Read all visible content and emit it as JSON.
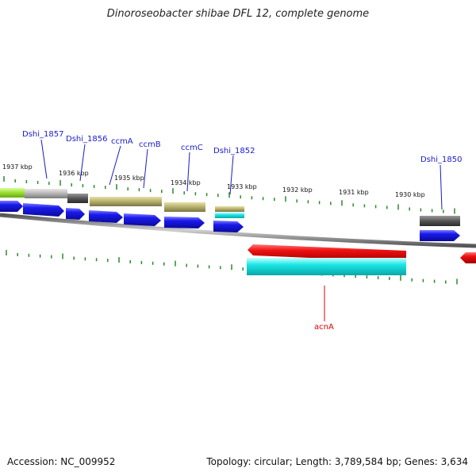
{
  "title": "Dinoroseobacter shibae DFL 12, complete genome",
  "footer": {
    "accession": "Accession: NC_009952",
    "summary": "Topology: circular; Length: 3,789,584 bp; Genes: 3,634"
  },
  "colors": {
    "backbone": "#8c8c8c",
    "tick": "#2a8a2a",
    "gene_label": "#1a1acc",
    "focus_label": "#dd0000",
    "cds": "#1a1aee",
    "rna_gray": "#b4b4b4",
    "rna_dark": "#555555",
    "rna_olive": "#b5af6a",
    "rna_green": "#99dd33",
    "cyan": "#19e6e6",
    "red": "#ee1111"
  },
  "scale_labels": [
    "1937 kbp",
    "1936 kbp",
    "1935 kbp",
    "1934 kbp",
    "1933 kbp",
    "1932 kbp",
    "1931 kbp",
    "1930 kbp"
  ],
  "gene_labels": [
    "Dshi_1857",
    "Dshi_1856",
    "ccmA",
    "ccmB",
    "ccmC",
    "Dshi_1852",
    "Dshi_1850"
  ],
  "focus_gene": "acnA"
}
